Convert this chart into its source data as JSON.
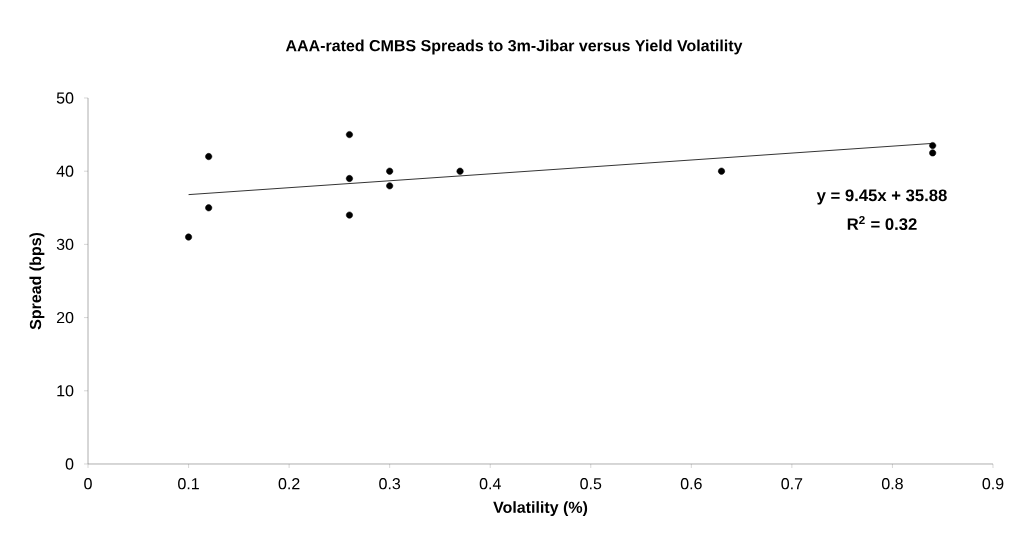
{
  "chart_data": {
    "type": "scatter",
    "title": "AAA-rated CMBS Spreads to 3m-Jibar versus Yield Volatility",
    "xlabel": "Volatility (%)",
    "ylabel": "Spread (bps)",
    "series": [
      {
        "type": "scatter",
        "color": "#000000",
        "marker": "circle",
        "x": [
          0.1,
          0.12,
          0.12,
          0.26,
          0.26,
          0.26,
          0.3,
          0.3,
          0.37,
          0.63,
          0.84,
          0.84
        ],
        "values": [
          31,
          42,
          35,
          45,
          39,
          34,
          40,
          38,
          40,
          40,
          43.5,
          42.5
        ]
      },
      {
        "type": "line",
        "color": "#000000",
        "marker": "none",
        "x": [
          0.1,
          0.84
        ],
        "values": [
          36.8,
          43.8
        ]
      }
    ],
    "annotations": [
      "y = 9.45x + 35.88",
      "R$^{2}$ = 0.32"
    ],
    "xlim": [
      0,
      0.9
    ],
    "xticks": [
      0,
      0.1,
      0.2,
      0.3,
      0.4,
      0.5,
      0.6,
      0.7,
      0.8,
      0.9
    ],
    "ylim": [
      0,
      50
    ],
    "yticks": [
      0,
      10,
      20,
      30,
      40,
      50
    ],
    "grid": false
  }
}
